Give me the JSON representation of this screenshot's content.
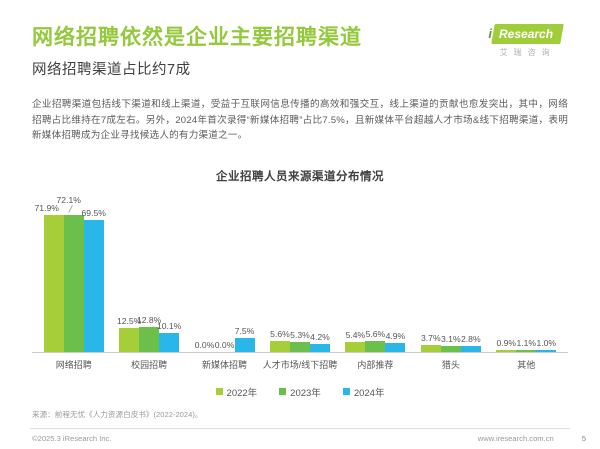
{
  "header": {
    "title": "网络招聘依然是企业主要招聘渠道",
    "subtitle": "网络招聘渠道占比约7成",
    "logo": {
      "brand_i": "i",
      "brand_name": "Research",
      "brand_cn": "艾瑞咨询"
    }
  },
  "body_paragraph": "企业招聘渠道包括线下渠道和线上渠道，受益于互联网信息传播的高效和强交互，线上渠道的贡献也愈发突出，其中，网络招聘占比维持在7成左右。另外，2024年首次录得“新媒体招聘”占比7.5%，且新媒体平台超越人才市场&线下招聘渠道，表明新媒体招聘成为企业寻找候选人的有力渠道之一。",
  "chart_data": {
    "type": "bar",
    "title": "企业招聘人员来源渠道分布情况",
    "categories": [
      "网络招聘",
      "校园招聘",
      "新媒体招聘",
      "人才市场/线下招聘",
      "内部推荐",
      "猎头",
      "其他"
    ],
    "series": [
      {
        "name": "2022年",
        "color": "#a6ce39",
        "values": [
          71.9,
          12.5,
          0.0,
          5.6,
          5.4,
          3.7,
          0.9
        ]
      },
      {
        "name": "2023年",
        "color": "#6cbf4b",
        "values": [
          72.1,
          12.8,
          0.0,
          5.3,
          5.6,
          3.1,
          1.1
        ]
      },
      {
        "name": "2024年",
        "color": "#29b7ea",
        "values": [
          69.5,
          10.1,
          7.5,
          4.2,
          4.9,
          2.8,
          1.0
        ]
      }
    ],
    "value_suffix": "%",
    "ylim": [
      0,
      80
    ],
    "grid": false,
    "legend_position": "bottom",
    "value_labels": true
  },
  "footer": {
    "source": "来源：前程无忧《人力资源白皮书》(2022-2024)。",
    "copyright": "©2025.3 iResearch Inc.",
    "website": "www.iresearch.com.cn",
    "page_number": "5"
  }
}
